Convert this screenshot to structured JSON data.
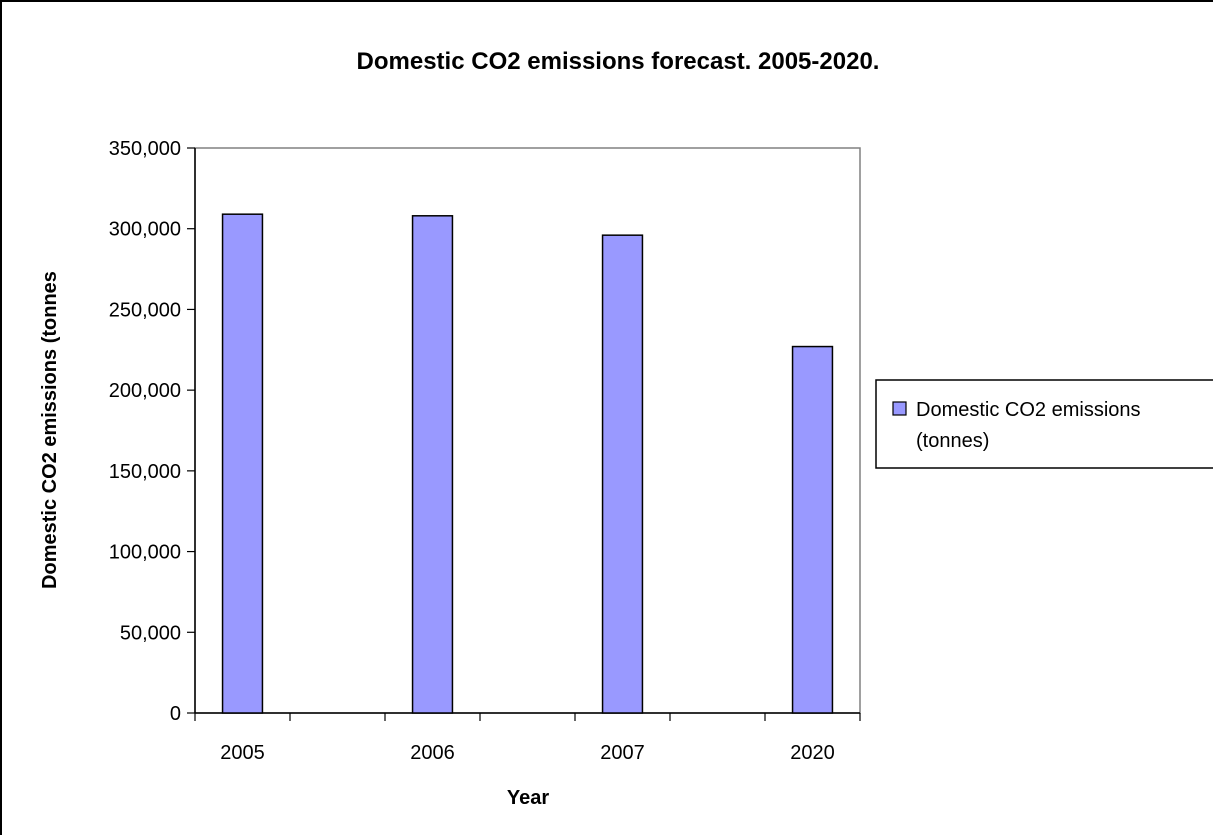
{
  "chart_data": {
    "type": "bar",
    "title": "Domestic CO2 emissions forecast. 2005-2020.",
    "xlabel": "Year",
    "ylabel": "Domestic CO2 emissions (tonnes",
    "categories": [
      "2005",
      "2006",
      "2007",
      "2020"
    ],
    "series": [
      {
        "name": "Domestic CO2 emissions (tonnes)",
        "values": [
          309000,
          308000,
          296000,
          227000
        ],
        "color": "#9999ff"
      }
    ],
    "ylim": [
      0,
      350000
    ],
    "yticks": [
      0,
      50000,
      100000,
      150000,
      200000,
      250000,
      300000,
      350000
    ],
    "ytick_labels": [
      "0",
      "50,000",
      "100,000",
      "150,000",
      "200,000",
      "250,000",
      "300,000",
      "350,000"
    ],
    "grid": false,
    "legend_position": "right",
    "legend_lines": [
      "Domestic CO2 emissions",
      "(tonnes)"
    ]
  }
}
